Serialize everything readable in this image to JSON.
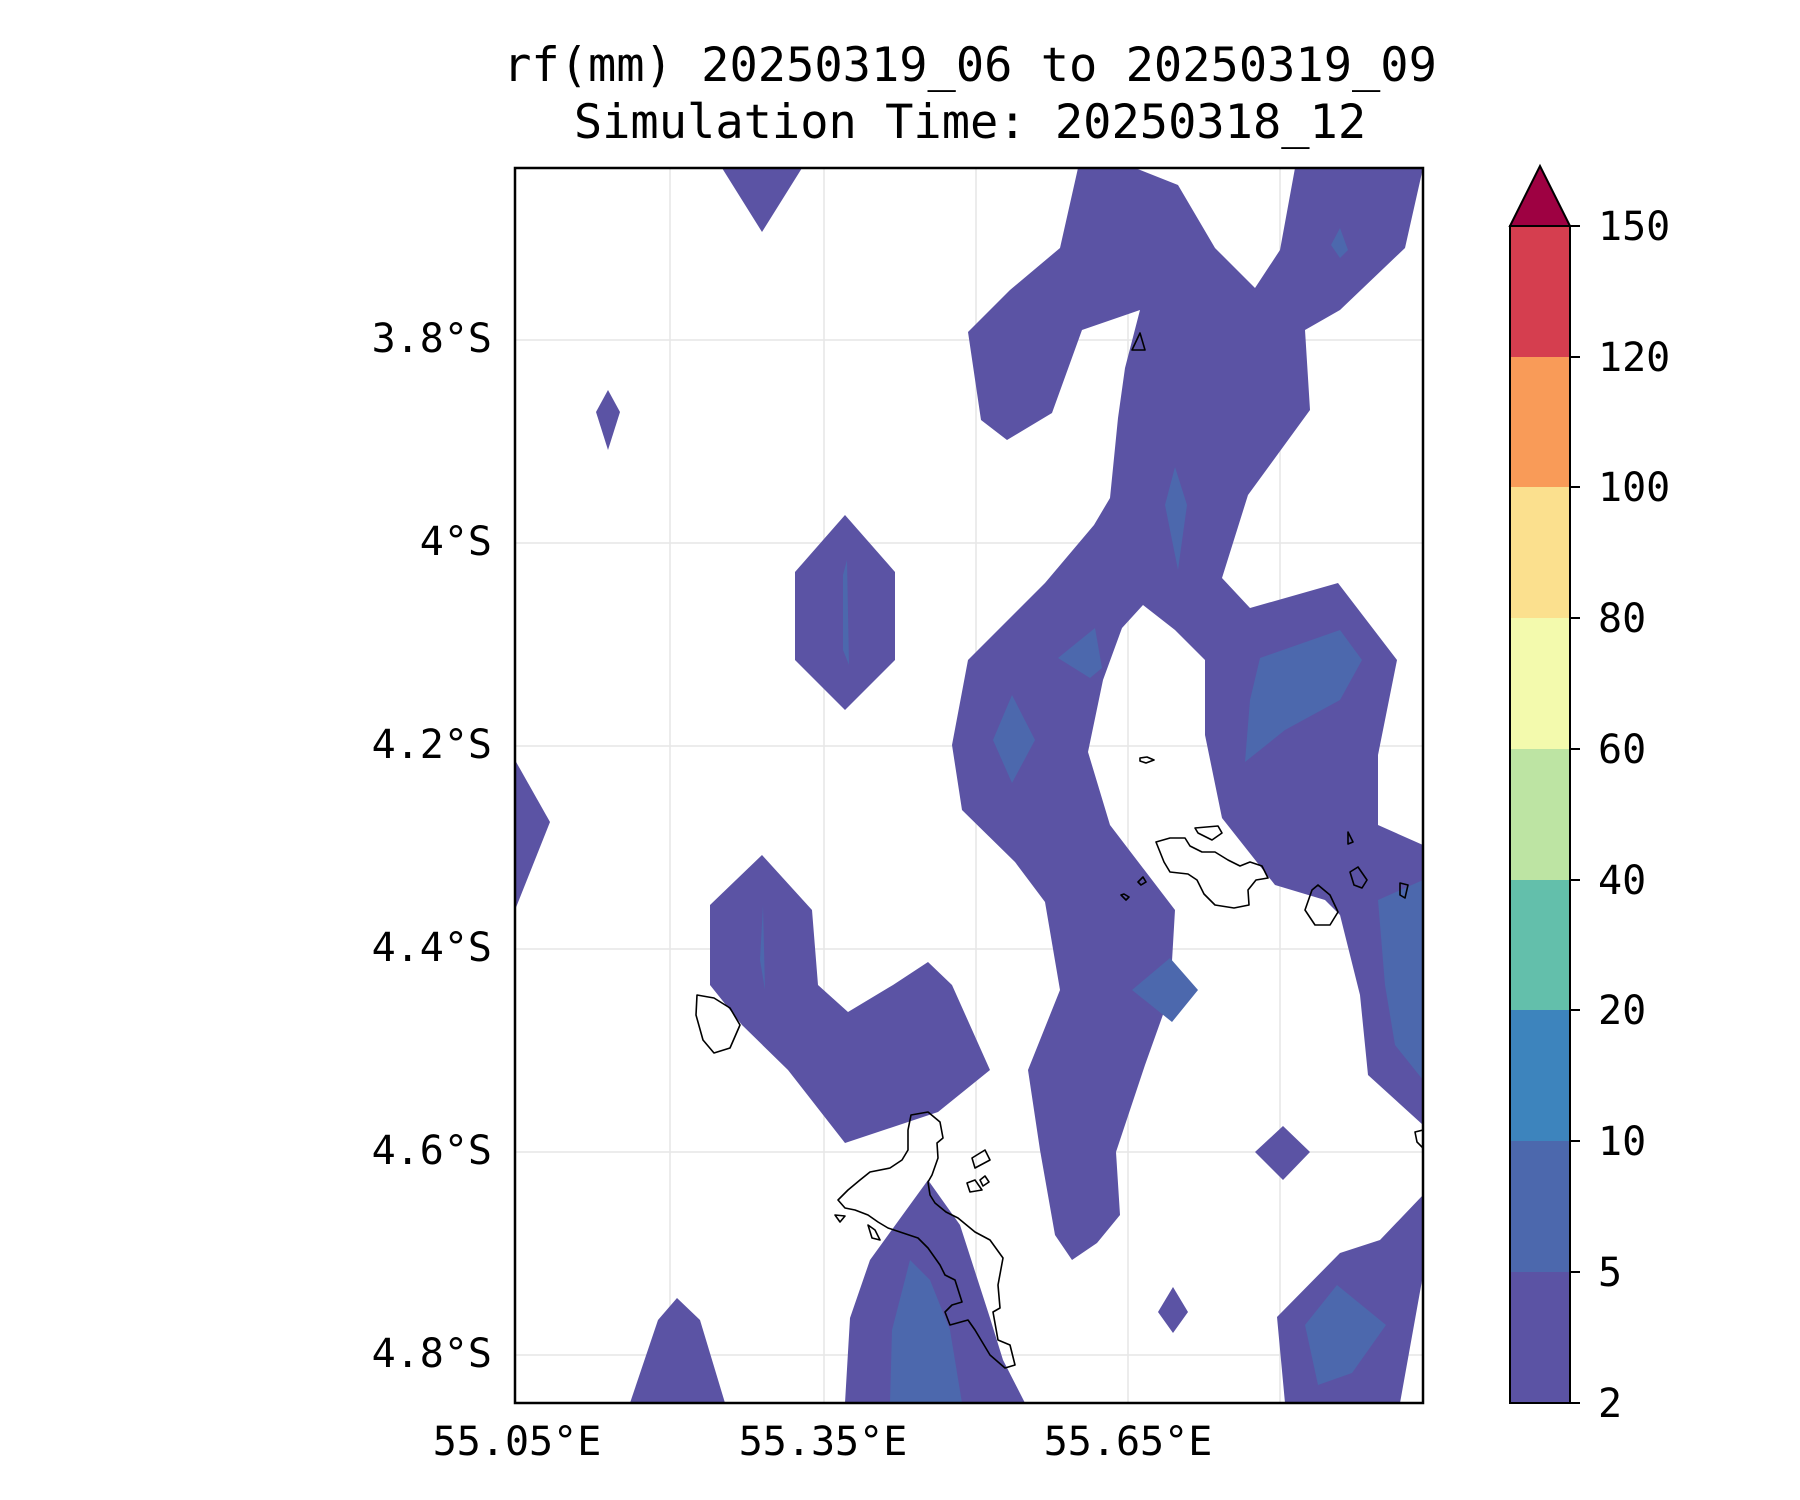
{
  "title": {
    "line1": "rf(mm) 20250319_06 to 20250319_09",
    "line2": "Simulation Time: 20250318_12"
  },
  "map": {
    "lat_ticks": [
      "3.8°S",
      "4°S",
      "4.2°S",
      "4.4°S",
      "4.6°S",
      "4.8°S"
    ],
    "lon_ticks": [
      "55.05°E",
      "55.35°E",
      "55.65°E"
    ],
    "coastline_color": "#000000",
    "grid": true
  },
  "colorbar": {
    "levels": [
      "2",
      "5",
      "10",
      "20",
      "40",
      "60",
      "80",
      "100",
      "120",
      "150"
    ],
    "colors": [
      "#5b53a4",
      "#4c68ad",
      "#3d84bd",
      "#63bfab",
      "#bde4a3",
      "#f3faad",
      "#fbe08e",
      "#f99b58",
      "#d53e4f",
      "#9e0142"
    ],
    "extend": "max"
  }
}
